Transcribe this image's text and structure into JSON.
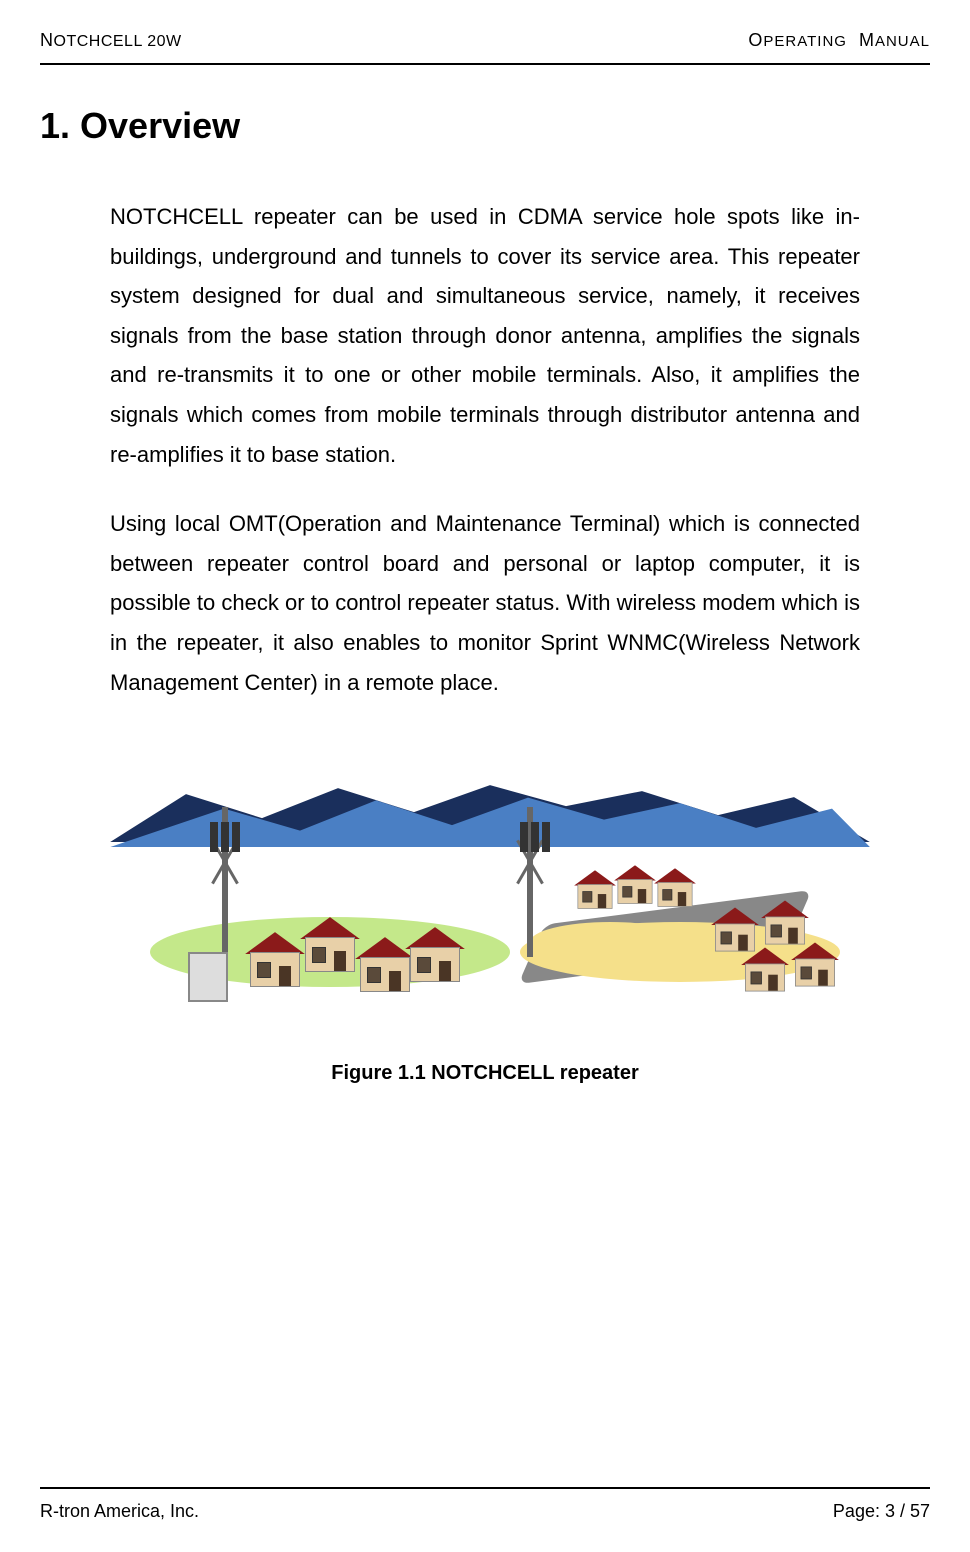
{
  "header": {
    "left_prefix": "N",
    "left_text": "OTCHCELL 20W",
    "right_o": "O",
    "right_perating": "PERATING",
    "right_m": "M",
    "right_anual": "ANUAL"
  },
  "section": {
    "title": "1. Overview"
  },
  "paragraphs": {
    "p1": "NOTCHCELL repeater can be used in CDMA service hole spots like in-buildings, underground and tunnels to cover its service area. This repeater system designed for dual and simultaneous service, namely, it receives signals from the base station through donor antenna, amplifies the signals and re-transmits it to one or other mobile terminals. Also, it amplifies the signals which comes from mobile terminals through distributor antenna and re-amplifies it to base station.",
    "p2": "Using local OMT(Operation and Maintenance Terminal) which is connected between repeater control board and personal or laptop computer, it is possible to check or to control repeater status. With wireless modem which is in the repeater, it also enables to monitor Sprint WNMC(Wireless Network Management Center) in a remote place."
  },
  "figure": {
    "caption": "Figure 1.1 NOTCHCELL repeater",
    "colors": {
      "mountain_dark": "#1a2f5c",
      "mountain_light": "#4a7fc4",
      "ground_green": "#c4e88a",
      "ground_yellow": "#f5e08a",
      "house_wall": "#e8d0a8",
      "house_roof": "#8b1a1a",
      "road": "#888888"
    }
  },
  "footer": {
    "company": "R-tron America, Inc.",
    "page": "Page: 3 / 57"
  }
}
